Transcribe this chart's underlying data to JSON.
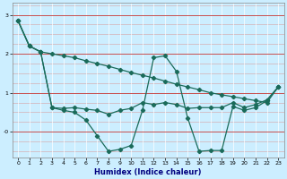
{
  "xlabel": "Humidex (Indice chaleur)",
  "background_color": "#cceeff",
  "line_color": "#1a6b5a",
  "xlim": [
    -0.5,
    23.5
  ],
  "ylim": [
    -0.65,
    3.3
  ],
  "series": [
    [
      2.85,
      2.2,
      2.05,
      2.0,
      1.95,
      1.9,
      1.82,
      1.75,
      1.68,
      1.6,
      1.52,
      1.45,
      1.38,
      1.3,
      1.22,
      1.15,
      1.08,
      1.0,
      0.95,
      0.9,
      0.85,
      0.8,
      0.75,
      1.15
    ],
    [
      2.85,
      2.2,
      2.05,
      0.62,
      0.6,
      0.62,
      0.58,
      0.55,
      0.45,
      0.55,
      0.6,
      0.75,
      0.7,
      0.75,
      0.7,
      0.6,
      0.62,
      0.62,
      0.62,
      0.75,
      0.62,
      0.7,
      0.82,
      1.15
    ],
    [
      2.85,
      2.2,
      2.05,
      0.62,
      0.55,
      0.5,
      0.3,
      -0.1,
      -0.5,
      -0.45,
      -0.35,
      0.55,
      1.9,
      1.95,
      1.55,
      0.35,
      -0.5,
      -0.48,
      -0.48,
      0.65,
      0.55,
      0.62,
      0.8,
      1.15
    ]
  ]
}
